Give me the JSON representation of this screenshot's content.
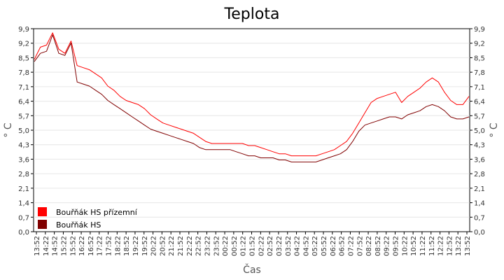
{
  "chart_data": {
    "type": "line",
    "title": "Teplota",
    "xlabel": "Čas",
    "ylabel": "° C",
    "ylabel_right": "° C",
    "ylim": [
      0.0,
      9.9
    ],
    "yticks": [
      "0,0",
      "0,7",
      "1,4",
      "2,1",
      "2,8",
      "3,6",
      "4,3",
      "5,0",
      "5,7",
      "6,4",
      "7,1",
      "7,8",
      "8,5",
      "9,2",
      "9,9"
    ],
    "xticks": [
      "13:52",
      "14:22",
      "14:52",
      "15:22",
      "15:52",
      "16:22",
      "16:52",
      "17:22",
      "17:52",
      "18:22",
      "18:52",
      "19:22",
      "19:52",
      "20:22",
      "20:52",
      "21:22",
      "21:52",
      "22:22",
      "22:52",
      "23:22",
      "23:52",
      "00:22",
      "00:52",
      "01:22",
      "01:52",
      "02:22",
      "02:52",
      "03:22",
      "03:52",
      "04:22",
      "04:52",
      "05:22",
      "05:52",
      "06:22",
      "06:52",
      "07:22",
      "07:52",
      "08:22",
      "08:52",
      "09:22",
      "09:52",
      "10:22",
      "10:52",
      "11:22",
      "11:52",
      "12:22",
      "12:52",
      "13:22",
      "13:52"
    ],
    "grid": true,
    "legend_position": "bottom-left",
    "series": [
      {
        "name": "Bouřňák HS přízemní",
        "color": "#ff0000",
        "values": [
          8.4,
          9.0,
          9.1,
          9.7,
          8.9,
          8.7,
          9.3,
          8.1,
          8.0,
          7.9,
          7.7,
          7.5,
          7.1,
          6.9,
          6.6,
          6.4,
          6.3,
          6.2,
          6.0,
          5.7,
          5.5,
          5.3,
          5.2,
          5.1,
          5.0,
          4.9,
          4.8,
          4.6,
          4.4,
          4.3,
          4.3,
          4.3,
          4.3,
          4.3,
          4.3,
          4.2,
          4.2,
          4.1,
          4.0,
          3.9,
          3.8,
          3.8,
          3.7,
          3.7,
          3.7,
          3.7,
          3.7,
          3.8,
          3.9,
          4.0,
          4.2,
          4.4,
          4.8,
          5.3,
          5.8,
          6.3,
          6.5,
          6.6,
          6.7,
          6.8,
          6.3,
          6.6,
          6.8,
          7.0,
          7.3,
          7.5,
          7.3,
          6.8,
          6.4,
          6.2,
          6.2,
          6.6
        ]
      },
      {
        "name": "Bouřňák HS",
        "color": "#800000",
        "values": [
          8.3,
          8.7,
          8.8,
          9.6,
          8.7,
          8.6,
          9.2,
          7.3,
          7.2,
          7.1,
          6.9,
          6.7,
          6.4,
          6.2,
          6.0,
          5.8,
          5.6,
          5.4,
          5.2,
          5.0,
          4.9,
          4.8,
          4.7,
          4.6,
          4.5,
          4.4,
          4.3,
          4.1,
          4.0,
          4.0,
          4.0,
          4.0,
          4.0,
          3.9,
          3.8,
          3.7,
          3.7,
          3.6,
          3.6,
          3.6,
          3.5,
          3.5,
          3.4,
          3.4,
          3.4,
          3.4,
          3.4,
          3.5,
          3.6,
          3.7,
          3.8,
          4.0,
          4.4,
          4.9,
          5.2,
          5.3,
          5.4,
          5.5,
          5.6,
          5.6,
          5.5,
          5.7,
          5.8,
          5.9,
          6.1,
          6.2,
          6.1,
          5.9,
          5.6,
          5.5,
          5.5,
          5.6
        ]
      }
    ]
  }
}
